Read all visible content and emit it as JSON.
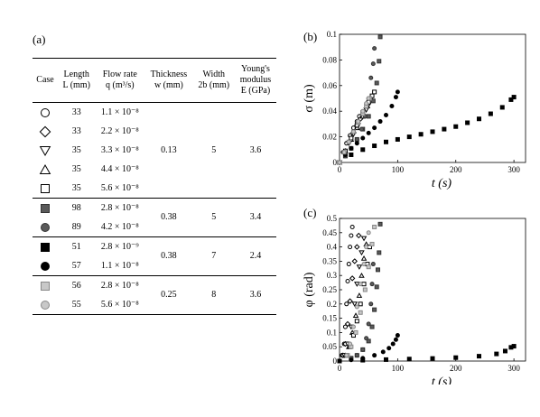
{
  "panel_labels": {
    "a": "(a)",
    "b": "(b)",
    "c": "(c)"
  },
  "table": {
    "headers": {
      "case": "Case",
      "length_1": "Length",
      "length_2": "L (mm)",
      "flow_1": "Flow rate",
      "flow_2": "q (m³/s)",
      "thick_1": "Thickness",
      "thick_2": "w (mm)",
      "width_1": "Width",
      "width_2": "2b (mm)",
      "young_1": "Young's",
      "young_2": "modulus",
      "young_3": "E (GPa)"
    },
    "groups": [
      {
        "thickness": "0.13",
        "width": "5",
        "modulus": "3.6",
        "rows": [
          {
            "marker": "circle-open",
            "length": "33",
            "flow": "1.1 × 10⁻⁸"
          },
          {
            "marker": "diamond-open",
            "length": "33",
            "flow": "2.2 × 10⁻⁸"
          },
          {
            "marker": "triangle-down-open",
            "length": "35",
            "flow": "3.3 × 10⁻⁸"
          },
          {
            "marker": "triangle-up-open",
            "length": "35",
            "flow": "4.4 × 10⁻⁸"
          },
          {
            "marker": "square-open",
            "length": "35",
            "flow": "5.6 × 10⁻⁸"
          }
        ]
      },
      {
        "thickness": "0.38",
        "width": "5",
        "modulus": "3.4",
        "rows": [
          {
            "marker": "square-gray-dark",
            "length": "98",
            "flow": "2.8 × 10⁻⁸"
          },
          {
            "marker": "circle-gray-dark",
            "length": "89",
            "flow": "4.2 × 10⁻⁸"
          }
        ]
      },
      {
        "thickness": "0.38",
        "width": "7",
        "modulus": "2.4",
        "rows": [
          {
            "marker": "square-black",
            "length": "51",
            "flow": "2.8 × 10⁻⁹"
          },
          {
            "marker": "circle-black",
            "length": "57",
            "flow": "1.1 × 10⁻⁸"
          }
        ]
      },
      {
        "thickness": "0.25",
        "width": "8",
        "modulus": "3.6",
        "rows": [
          {
            "marker": "square-gray-light",
            "length": "56",
            "flow": "2.8 × 10⁻⁸"
          },
          {
            "marker": "circle-gray-light",
            "length": "55",
            "flow": "5.6 × 10⁻⁸"
          }
        ]
      }
    ]
  },
  "colors": {
    "black": "#000000",
    "dark_gray": "#5a5a5a",
    "mid_gray": "#888888",
    "light_gray": "#c8c8c8"
  },
  "chart_data": [
    {
      "id": "b",
      "type": "scatter",
      "xlabel": "t (s)",
      "ylabel": "σ (m)",
      "xlim": [
        0,
        320
      ],
      "ylim": [
        0,
        0.1
      ],
      "xticks": [
        "0",
        "100",
        "200",
        "300"
      ],
      "yticks": [
        "0",
        "0.02",
        "0.04",
        "0.06",
        "0.08",
        "0.1"
      ],
      "series": [
        {
          "marker": "circle-open",
          "points": [
            [
              0,
              0
            ],
            [
              6,
              0.008
            ],
            [
              12,
              0.015
            ],
            [
              18,
              0.021
            ],
            [
              24,
              0.027
            ],
            [
              30,
              0.032
            ],
            [
              34,
              0.036
            ]
          ]
        },
        {
          "marker": "diamond-open",
          "points": [
            [
              0,
              0
            ],
            [
              8,
              0.008
            ],
            [
              16,
              0.016
            ],
            [
              24,
              0.023
            ],
            [
              30,
              0.029
            ],
            [
              36,
              0.034
            ],
            [
              40,
              0.037
            ]
          ]
        },
        {
          "marker": "triangle-down-open",
          "points": [
            [
              0,
              0
            ],
            [
              8,
              0.007
            ],
            [
              16,
              0.015
            ],
            [
              24,
              0.022
            ],
            [
              32,
              0.029
            ],
            [
              40,
              0.036
            ],
            [
              46,
              0.041
            ],
            [
              50,
              0.045
            ]
          ]
        },
        {
          "marker": "triangle-up-open",
          "points": [
            [
              0,
              0
            ],
            [
              10,
              0.009
            ],
            [
              20,
              0.018
            ],
            [
              30,
              0.027
            ],
            [
              40,
              0.036
            ],
            [
              48,
              0.044
            ],
            [
              54,
              0.05
            ]
          ]
        },
        {
          "marker": "square-open",
          "points": [
            [
              0,
              0
            ],
            [
              10,
              0.009
            ],
            [
              20,
              0.019
            ],
            [
              30,
              0.029
            ],
            [
              40,
              0.039
            ],
            [
              50,
              0.047
            ],
            [
              56,
              0.052
            ],
            [
              60,
              0.055
            ]
          ]
        },
        {
          "marker": "square-gray-dark",
          "points": [
            [
              0,
              0
            ],
            [
              10,
              0.005
            ],
            [
              20,
              0.011
            ],
            [
              30,
              0.018
            ],
            [
              40,
              0.026
            ],
            [
              50,
              0.036
            ],
            [
              58,
              0.048
            ],
            [
              64,
              0.062
            ],
            [
              68,
              0.079
            ],
            [
              70,
              0.098
            ]
          ]
        },
        {
          "marker": "circle-gray-dark",
          "points": [
            [
              0,
              0
            ],
            [
              10,
              0.005
            ],
            [
              20,
              0.011
            ],
            [
              30,
              0.018
            ],
            [
              38,
              0.026
            ],
            [
              44,
              0.036
            ],
            [
              50,
              0.05
            ],
            [
              54,
              0.066
            ],
            [
              58,
              0.077
            ],
            [
              60,
              0.089
            ]
          ]
        },
        {
          "marker": "square-black",
          "points": [
            [
              0,
              0
            ],
            [
              20,
              0.006
            ],
            [
              40,
              0.01
            ],
            [
              60,
              0.013
            ],
            [
              80,
              0.016
            ],
            [
              100,
              0.018
            ],
            [
              120,
              0.02
            ],
            [
              140,
              0.022
            ],
            [
              160,
              0.024
            ],
            [
              180,
              0.026
            ],
            [
              200,
              0.028
            ],
            [
              220,
              0.031
            ],
            [
              240,
              0.034
            ],
            [
              260,
              0.038
            ],
            [
              280,
              0.043
            ],
            [
              295,
              0.049
            ],
            [
              300,
              0.051
            ]
          ]
        },
        {
          "marker": "circle-black",
          "points": [
            [
              0,
              0
            ],
            [
              10,
              0.006
            ],
            [
              20,
              0.011
            ],
            [
              30,
              0.015
            ],
            [
              40,
              0.019
            ],
            [
              50,
              0.023
            ],
            [
              60,
              0.027
            ],
            [
              70,
              0.032
            ],
            [
              80,
              0.037
            ],
            [
              90,
              0.044
            ],
            [
              97,
              0.051
            ],
            [
              100,
              0.055
            ]
          ]
        },
        {
          "marker": "square-gray-light",
          "points": [
            [
              0,
              0
            ],
            [
              8,
              0.008
            ],
            [
              16,
              0.016
            ],
            [
              24,
              0.024
            ],
            [
              32,
              0.031
            ],
            [
              40,
              0.038
            ],
            [
              46,
              0.044
            ],
            [
              52,
              0.05
            ]
          ]
        },
        {
          "marker": "circle-gray-light",
          "points": [
            [
              0,
              0
            ],
            [
              8,
              0.008
            ],
            [
              16,
              0.016
            ],
            [
              24,
              0.024
            ],
            [
              32,
              0.032
            ],
            [
              40,
              0.04
            ],
            [
              46,
              0.046
            ],
            [
              50,
              0.05
            ]
          ]
        }
      ]
    },
    {
      "id": "c",
      "type": "scatter",
      "xlabel": "t (s)",
      "ylabel": "φ (rad)",
      "xlim": [
        0,
        320
      ],
      "ylim": [
        0,
        0.5
      ],
      "xticks": [
        "0",
        "100",
        "200",
        "300"
      ],
      "yticks": [
        "0",
        "0.05",
        "0.1",
        "0.15",
        "0.2",
        "0.25",
        "0.3",
        "0.35",
        "0.4",
        "0.45",
        "0.5"
      ],
      "series": [
        {
          "marker": "circle-open",
          "points": [
            [
              4,
              0.02
            ],
            [
              8,
              0.06
            ],
            [
              10,
              0.12
            ],
            [
              12,
              0.2
            ],
            [
              14,
              0.28
            ],
            [
              16,
              0.34
            ],
            [
              18,
              0.4
            ],
            [
              20,
              0.44
            ],
            [
              22,
              0.47
            ]
          ]
        },
        {
          "marker": "diamond-open",
          "points": [
            [
              6,
              0.02
            ],
            [
              10,
              0.06
            ],
            [
              14,
              0.13
            ],
            [
              18,
              0.21
            ],
            [
              22,
              0.29
            ],
            [
              26,
              0.35
            ],
            [
              30,
              0.4
            ],
            [
              33,
              0.44
            ]
          ]
        },
        {
          "marker": "triangle-down-open",
          "points": [
            [
              8,
              0.02
            ],
            [
              14,
              0.06
            ],
            [
              20,
              0.12
            ],
            [
              26,
              0.2
            ],
            [
              30,
              0.27
            ],
            [
              34,
              0.33
            ],
            [
              38,
              0.38
            ],
            [
              42,
              0.43
            ]
          ]
        },
        {
          "marker": "triangle-up-open",
          "points": [
            [
              10,
              0.02
            ],
            [
              16,
              0.05
            ],
            [
              22,
              0.1
            ],
            [
              28,
              0.16
            ],
            [
              34,
              0.23
            ],
            [
              38,
              0.3
            ],
            [
              42,
              0.36
            ],
            [
              46,
              0.41
            ]
          ]
        },
        {
          "marker": "square-open",
          "points": [
            [
              12,
              0.02
            ],
            [
              18,
              0.05
            ],
            [
              24,
              0.09
            ],
            [
              30,
              0.14
            ],
            [
              36,
              0.2
            ],
            [
              42,
              0.27
            ],
            [
              48,
              0.34
            ],
            [
              52,
              0.4
            ]
          ]
        },
        {
          "marker": "square-gray-dark",
          "points": [
            [
              20,
              0.01
            ],
            [
              30,
              0.02
            ],
            [
              40,
              0.04
            ],
            [
              50,
              0.07
            ],
            [
              56,
              0.12
            ],
            [
              60,
              0.18
            ],
            [
              64,
              0.26
            ],
            [
              66,
              0.32
            ],
            [
              68,
              0.38
            ],
            [
              70,
              0.48
            ]
          ]
        },
        {
          "marker": "circle-gray-dark",
          "points": [
            [
              20,
              0.01
            ],
            [
              30,
              0.02
            ],
            [
              40,
              0.04
            ],
            [
              46,
              0.08
            ],
            [
              50,
              0.13
            ],
            [
              54,
              0.2
            ],
            [
              56,
              0.27
            ],
            [
              58,
              0.34
            ]
          ]
        },
        {
          "marker": "square-black",
          "points": [
            [
              0,
              0
            ],
            [
              40,
              0.003
            ],
            [
              80,
              0.005
            ],
            [
              120,
              0.007
            ],
            [
              160,
              0.009
            ],
            [
              200,
              0.012
            ],
            [
              240,
              0.017
            ],
            [
              270,
              0.025
            ],
            [
              285,
              0.035
            ],
            [
              295,
              0.048
            ],
            [
              300,
              0.052
            ]
          ]
        },
        {
          "marker": "circle-black",
          "points": [
            [
              0,
              0
            ],
            [
              20,
              0.004
            ],
            [
              40,
              0.01
            ],
            [
              60,
              0.02
            ],
            [
              75,
              0.032
            ],
            [
              85,
              0.045
            ],
            [
              92,
              0.06
            ],
            [
              97,
              0.075
            ],
            [
              100,
              0.09
            ]
          ]
        },
        {
          "marker": "square-gray-light",
          "points": [
            [
              14,
              0.02
            ],
            [
              20,
              0.05
            ],
            [
              28,
              0.1
            ],
            [
              36,
              0.17
            ],
            [
              44,
              0.25
            ],
            [
              50,
              0.33
            ],
            [
              56,
              0.41
            ],
            [
              60,
              0.47
            ]
          ]
        },
        {
          "marker": "circle-gray-light",
          "points": [
            [
              12,
              0.02
            ],
            [
              18,
              0.06
            ],
            [
              24,
              0.12
            ],
            [
              30,
              0.19
            ],
            [
              36,
              0.27
            ],
            [
              42,
              0.34
            ],
            [
              46,
              0.4
            ],
            [
              50,
              0.45
            ]
          ]
        }
      ]
    }
  ]
}
